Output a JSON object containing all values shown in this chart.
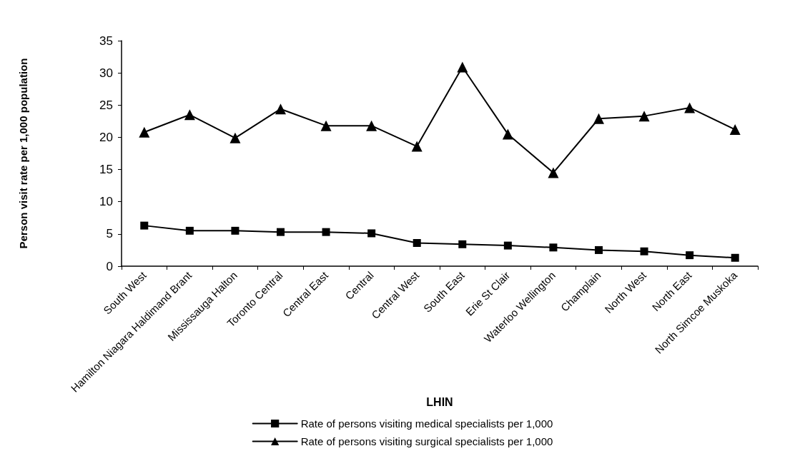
{
  "chart_data": {
    "type": "line",
    "xlabel": "LHIN",
    "ylabel": "Person visit rate per 1,000 population",
    "categories": [
      "South West",
      "Hamilton Niagara Haldimand Brant",
      "Mississauga Halton",
      "Toronto Central",
      "Central East",
      "Central",
      "Central West",
      "South East",
      "Erie St Clair",
      "Waterloo Wellington",
      "Champlain",
      "North West",
      "North East",
      "North Simcoe Muskoka"
    ],
    "series": [
      {
        "name": "Rate of persons visiting medical specialists per 1,000",
        "color": "#000000",
        "marker": "square",
        "values": [
          6.3,
          5.5,
          5.5,
          5.3,
          5.3,
          5.1,
          3.6,
          3.4,
          3.2,
          2.9,
          2.5,
          2.3,
          1.7,
          1.3
        ]
      },
      {
        "name": "Rate of persons visiting surgical specialists per 1,000",
        "color": "#000000",
        "marker": "triangle",
        "values": [
          20.8,
          23.5,
          19.9,
          24.4,
          21.8,
          21.8,
          18.6,
          30.9,
          20.5,
          14.5,
          22.9,
          23.3,
          24.6,
          21.2
        ]
      }
    ],
    "ylim": [
      0,
      35
    ],
    "yticks": [
      0,
      5,
      10,
      15,
      20,
      25,
      30,
      35
    ],
    "grid": false,
    "legend": "bottom",
    "line_style": "solid"
  }
}
